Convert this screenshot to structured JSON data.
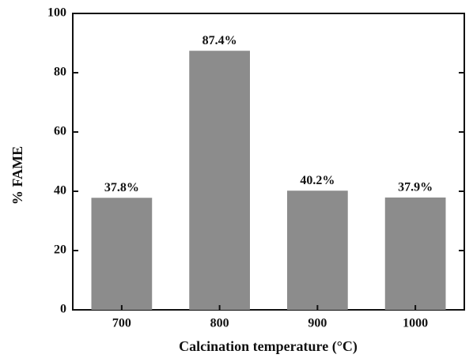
{
  "chart_data": {
    "type": "bar",
    "xlabel": "Calcination temperature (°C)",
    "ylabel": "% FAME",
    "categories": [
      "700",
      "800",
      "900",
      "1000"
    ],
    "values": [
      37.8,
      87.4,
      40.2,
      37.9
    ],
    "value_labels": [
      "37.8%",
      "87.4%",
      "40.2%",
      "37.9%"
    ],
    "color": "#8c8c8c",
    "ylim": [
      0,
      100
    ],
    "yticks": [
      0,
      20,
      40,
      60,
      80,
      100
    ],
    "grid": false
  }
}
